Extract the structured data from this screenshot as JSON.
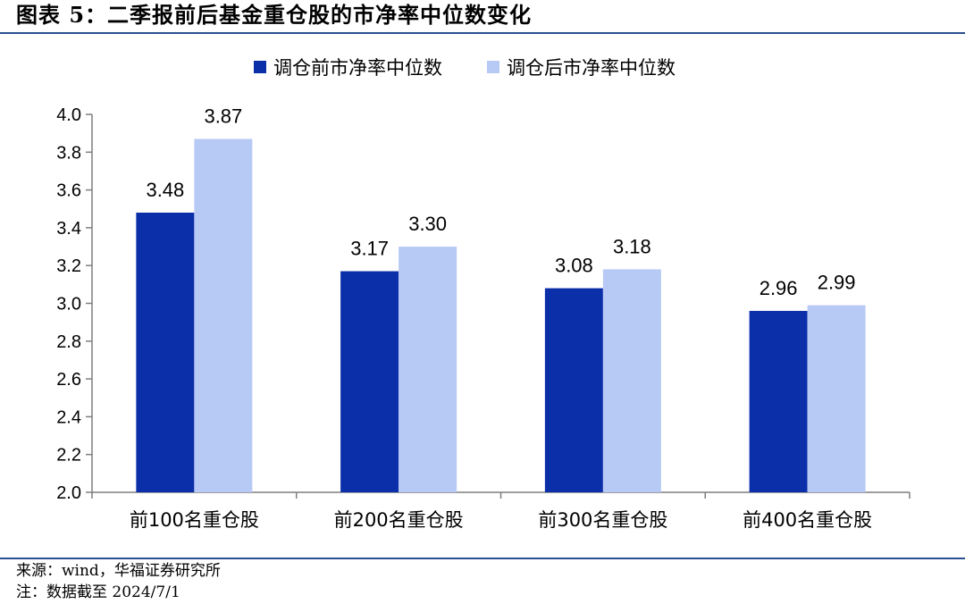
{
  "title": "图表 5：二季报前后基金重仓股的市净率中位数变化",
  "footer": {
    "source": "来源：wind，华福证券研究所",
    "note": "注：数据截至 2024/7/1"
  },
  "colors": {
    "series1": "#0a2fa8",
    "series2": "#b7c9f5",
    "rule": "#2a4f8f",
    "axis": "#7f7f7f"
  },
  "chart_data": {
    "type": "bar",
    "categories": [
      "前100名重仓股",
      "前200名重仓股",
      "前300名重仓股",
      "前400名重仓股"
    ],
    "series": [
      {
        "name": "调仓前市净率中位数",
        "values": [
          3.48,
          3.17,
          3.08,
          2.96
        ],
        "labels": [
          "3.48",
          "3.17",
          "3.08",
          "2.96"
        ]
      },
      {
        "name": "调仓后市净率中位数",
        "values": [
          3.87,
          3.3,
          3.18,
          2.99
        ],
        "labels": [
          "3.87",
          "3.30",
          "3.18",
          "2.99"
        ]
      }
    ],
    "ylim": [
      2.0,
      4.0
    ],
    "yticks": [
      "2.0",
      "2.2",
      "2.4",
      "2.6",
      "2.8",
      "3.0",
      "3.2",
      "3.4",
      "3.6",
      "3.8",
      "4.0"
    ],
    "legend_position": "top-center",
    "grid": false
  }
}
